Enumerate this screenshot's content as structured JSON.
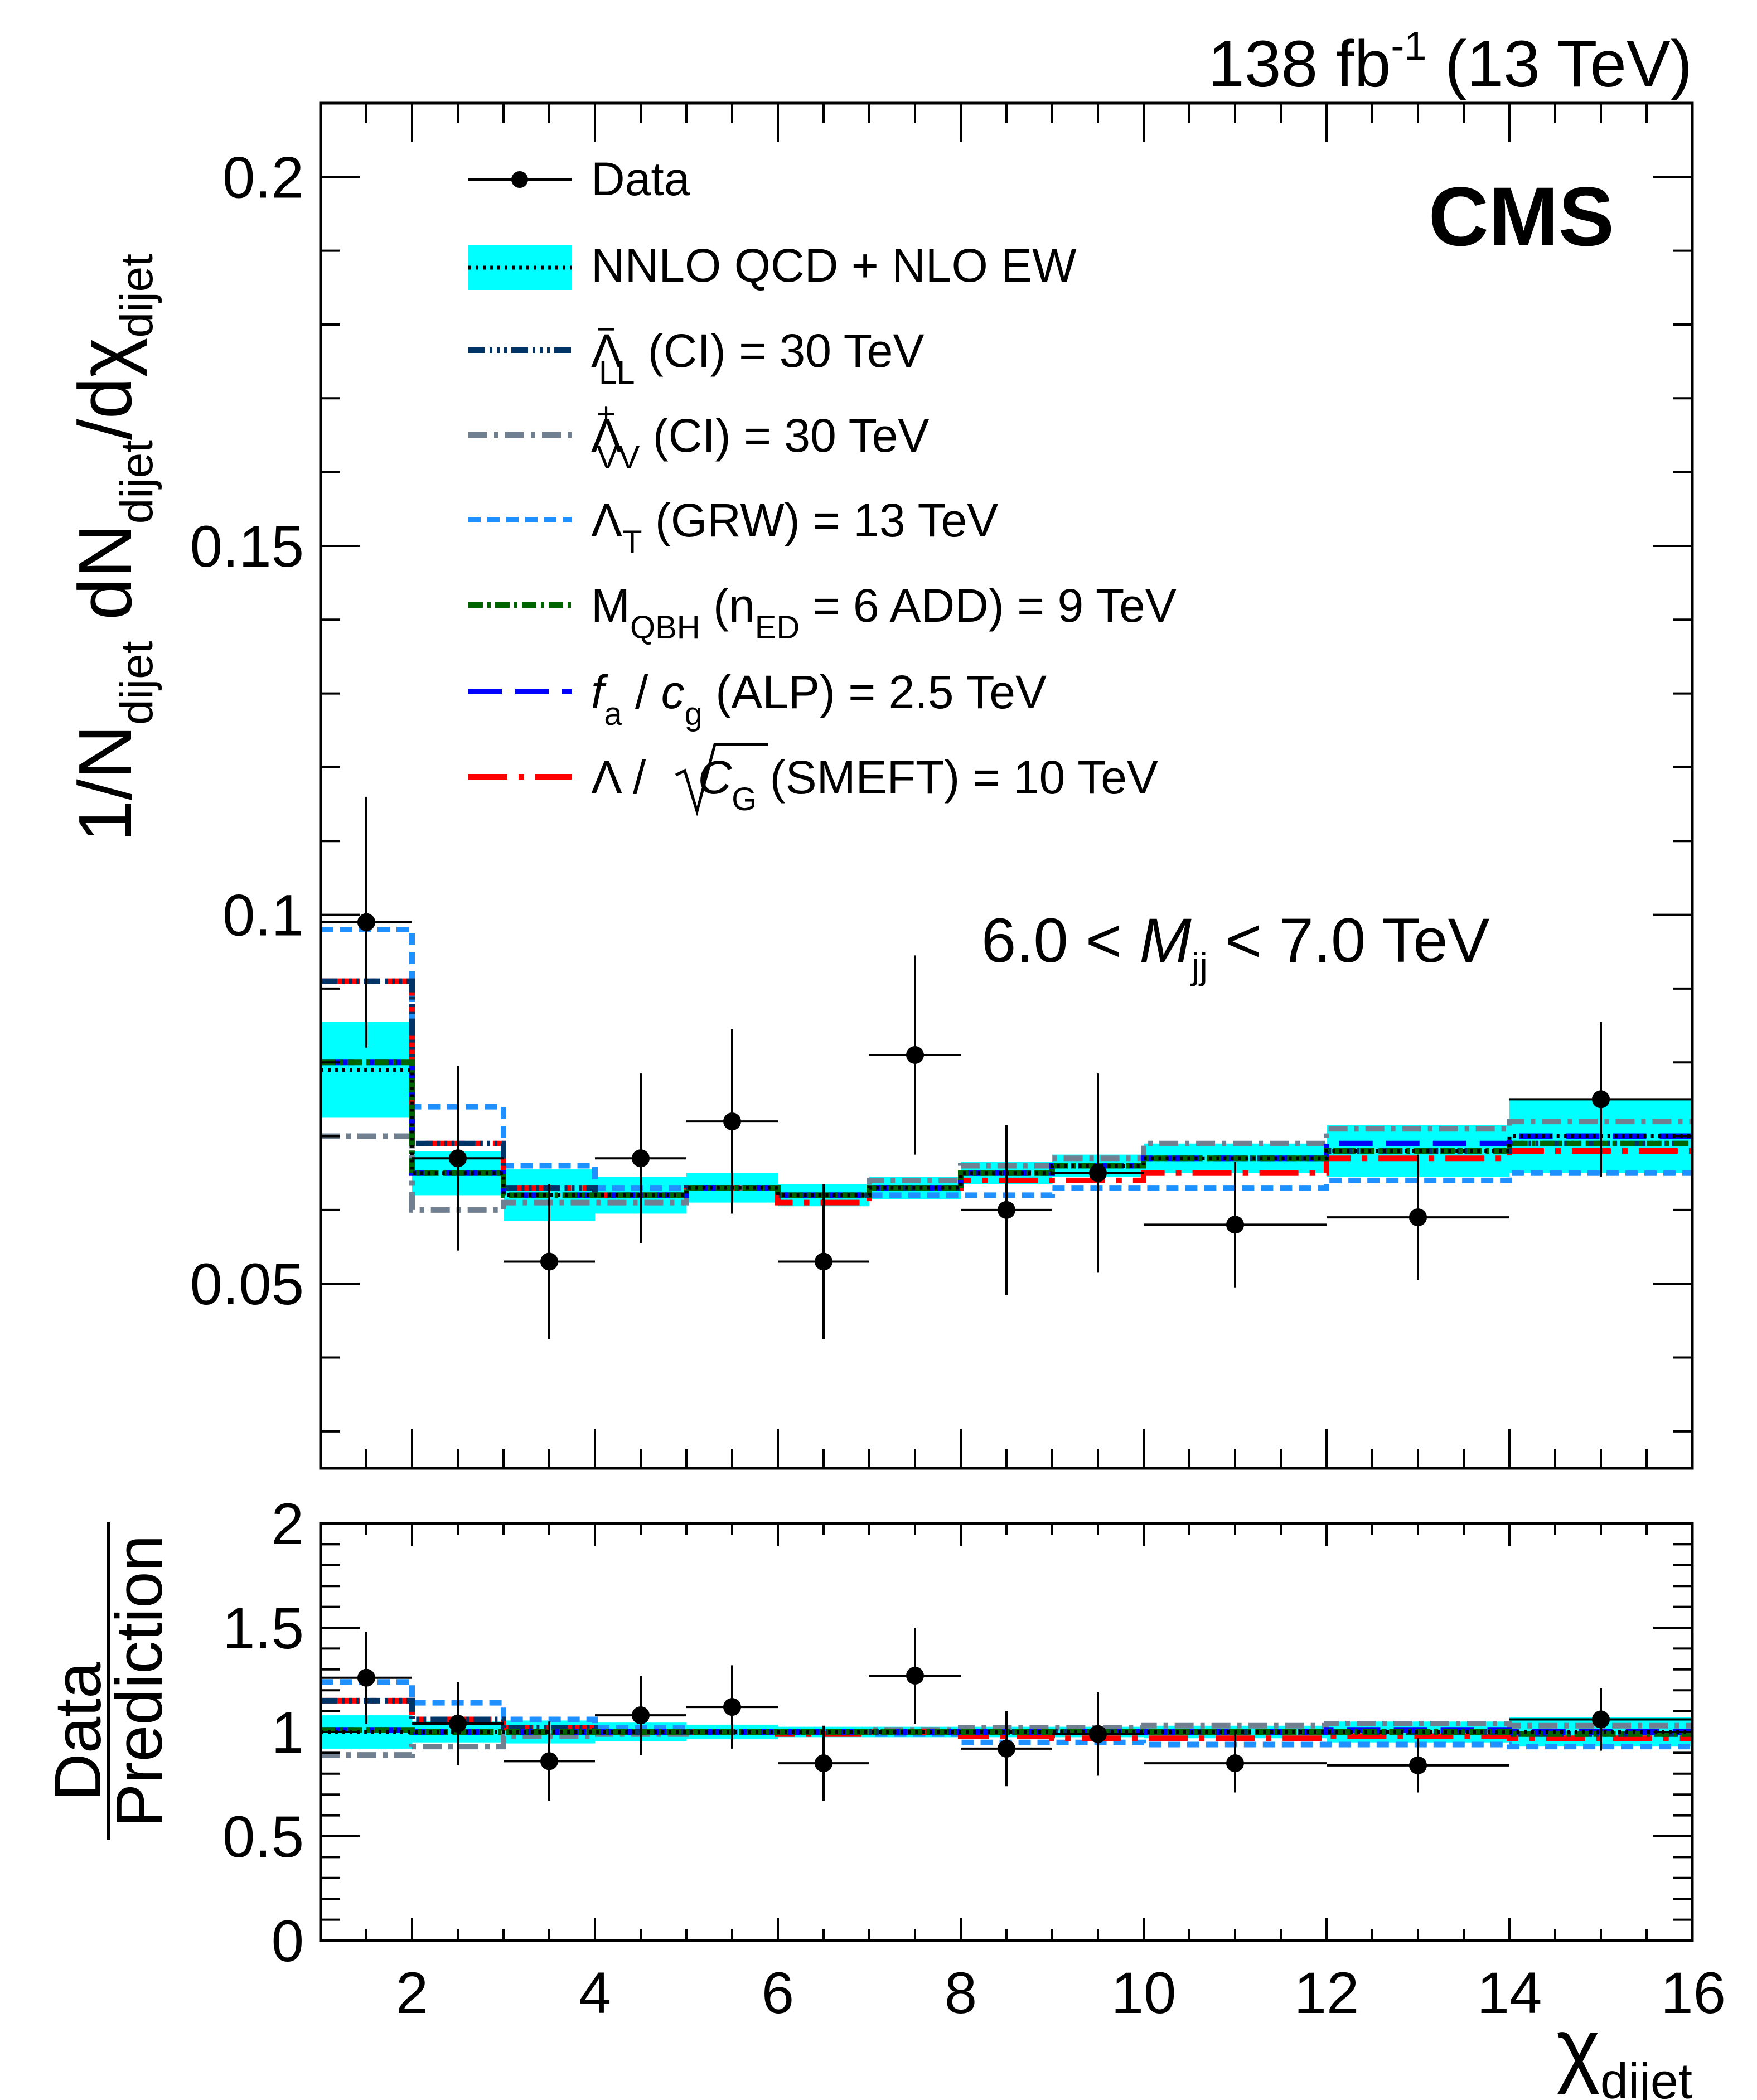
{
  "header": {
    "lumi_value": "138 fb",
    "lumi_exponent": "-1",
    "energy": " (13 TeV)",
    "experiment": "CMS"
  },
  "annotation": {
    "prefix": "6.0 < ",
    "variable": "M",
    "variable_sub": "jj",
    "suffix": " < 7.0 TeV"
  },
  "axes": {
    "x_symbol": "χ",
    "x_sub": "dijet",
    "y_prefix": "1/N",
    "y_sub1": "dijet",
    "y_mid": " dN",
    "y_sub2": "dijet",
    "y_slash": "/dχ",
    "y_sub3": "dijet",
    "ratio_top": "Data",
    "ratio_bottom": "Prediction"
  },
  "legend": [
    {
      "key": "data",
      "text": "Data"
    },
    {
      "key": "sm",
      "text": "NNLO QCD + NLO EW"
    },
    {
      "key": "ll",
      "sym": "Λ",
      "sup": "−",
      "sub": "LL",
      "text": " (CI) = 30 TeV"
    },
    {
      "key": "vv",
      "sym": "Λ",
      "sup": "+",
      "sub": "VV",
      "text": " (CI) = 30 TeV"
    },
    {
      "key": "grw",
      "sym": "Λ",
      "sub": "T",
      "text": " (GRW) = 13 TeV"
    },
    {
      "key": "qbh",
      "sym": "M",
      "sub": "QBH",
      "text": " (n",
      "sub2": "ED",
      "text2": " = 6 ADD) = 9 TeV"
    },
    {
      "key": "alp",
      "sym": "f",
      "sub": "a",
      "text": " / ",
      "sym2": "c",
      "sub2": "g",
      "text2": " (ALP) = 2.5 TeV"
    },
    {
      "key": "smeft",
      "sym": "Λ / ",
      "radicand": "C",
      "sub": "G",
      "text": " (SMEFT) = 10 TeV"
    }
  ],
  "styles": {
    "sm_band": "#00ffff",
    "ll": "#003366",
    "vv": "#708090",
    "grw": "#1e90ff",
    "qbh": "#006400",
    "alp": "#0000ff",
    "smeft": "#ff0000"
  },
  "chart_data": [
    {
      "type": "line",
      "title": "138 fb-1 (13 TeV)",
      "xlabel": "χ_dijet",
      "ylabel": "1/N_dijet dN_dijet/dχ_dijet",
      "xlim": [
        1,
        16
      ],
      "ylim": [
        0.025,
        0.21
      ],
      "yticks": [
        0.05,
        0.1,
        0.15,
        0.2
      ],
      "yticklabels": [
        "0.05",
        "0.1",
        "0.15",
        "0.2"
      ],
      "bin_edges": [
        1,
        2,
        3,
        4,
        5,
        6,
        7,
        8,
        9,
        10,
        12,
        14,
        16
      ],
      "data": {
        "x": [
          1.5,
          2.5,
          3.5,
          4.5,
          5.5,
          6.5,
          7.5,
          8.5,
          9.5,
          11,
          13,
          15
        ],
        "y": [
          0.099,
          0.067,
          0.053,
          0.067,
          0.072,
          0.053,
          0.081,
          0.06,
          0.065,
          0.058,
          0.059,
          0.075
        ],
        "yerr": [
          0.017,
          0.0125,
          0.0105,
          0.0115,
          0.0125,
          0.0105,
          0.0135,
          0.0115,
          0.0135,
          0.0085,
          0.0085,
          0.0105
        ]
      },
      "series": [
        {
          "name": "NNLO QCD + NLO EW",
          "key": "sm",
          "values": [
            0.079,
            0.065,
            0.062,
            0.062,
            0.063,
            0.062,
            0.063,
            0.065,
            0.066,
            0.067,
            0.068,
            0.07
          ],
          "band": [
            0.0065,
            0.003,
            0.0035,
            0.0025,
            0.002,
            0.0015,
            0.0015,
            0.0015,
            0.0015,
            0.002,
            0.0035,
            0.005
          ]
        },
        {
          "name": "ΛLL- (CI) = 30 TeV",
          "key": "ll",
          "values": [
            0.091,
            0.069,
            0.063,
            0.062,
            0.063,
            0.062,
            0.063,
            0.065,
            0.066,
            0.067,
            0.068,
            0.069
          ]
        },
        {
          "name": "ΛVV+ (CI) = 30 TeV",
          "key": "vv",
          "values": [
            0.07,
            0.06,
            0.061,
            0.061,
            0.063,
            0.062,
            0.064,
            0.066,
            0.067,
            0.069,
            0.071,
            0.072
          ]
        },
        {
          "name": "ΛT (GRW) = 13 TeV",
          "key": "grw",
          "values": [
            0.098,
            0.074,
            0.066,
            0.063,
            0.063,
            0.062,
            0.062,
            0.062,
            0.063,
            0.063,
            0.064,
            0.065
          ]
        },
        {
          "name": "MQBH (nED = 6 ADD) = 9 TeV",
          "key": "qbh",
          "values": [
            0.08,
            0.065,
            0.062,
            0.062,
            0.063,
            0.062,
            0.063,
            0.065,
            0.066,
            0.067,
            0.068,
            0.069
          ]
        },
        {
          "name": "fa / cg (ALP) = 2.5 TeV",
          "key": "alp",
          "values": [
            0.08,
            0.065,
            0.062,
            0.062,
            0.063,
            0.062,
            0.063,
            0.065,
            0.066,
            0.067,
            0.069,
            0.07
          ]
        },
        {
          "name": "Λ / sqrt(CG) (SMEFT) = 10 TeV",
          "key": "smeft",
          "values": [
            0.091,
            0.069,
            0.063,
            0.062,
            0.063,
            0.061,
            0.063,
            0.064,
            0.064,
            0.065,
            0.067,
            0.068
          ]
        }
      ]
    },
    {
      "type": "line",
      "xlabel": "χ_dijet",
      "ylabel": "Data / Prediction",
      "xlim": [
        1,
        16
      ],
      "ylim": [
        0,
        2
      ],
      "xticks": [
        2,
        4,
        6,
        8,
        10,
        12,
        14,
        16
      ],
      "xticklabels": [
        "2",
        "4",
        "6",
        "8",
        "10",
        "12",
        "14",
        "16"
      ],
      "yticks": [
        0,
        0.5,
        1,
        1.5,
        2
      ],
      "yticklabels": [
        "0",
        "0.5",
        "1",
        "1.5",
        "2"
      ],
      "bin_edges": [
        1,
        2,
        3,
        4,
        5,
        6,
        7,
        8,
        9,
        10,
        12,
        14,
        16
      ],
      "data": {
        "x": [
          1.5,
          2.5,
          3.5,
          4.5,
          5.5,
          6.5,
          7.5,
          8.5,
          9.5,
          11,
          13,
          15
        ],
        "y": [
          1.26,
          1.04,
          0.86,
          1.08,
          1.12,
          0.85,
          1.27,
          0.92,
          0.99,
          0.85,
          0.84,
          1.06
        ],
        "yerr": [
          0.22,
          0.2,
          0.19,
          0.19,
          0.2,
          0.18,
          0.23,
          0.18,
          0.2,
          0.14,
          0.13,
          0.15
        ]
      },
      "series": [
        {
          "name": "NNLO QCD + NLO EW",
          "key": "sm",
          "values": [
            1,
            1,
            1,
            1,
            1,
            1,
            1,
            1,
            1,
            1,
            1,
            1
          ],
          "band": [
            0.08,
            0.05,
            0.055,
            0.045,
            0.035,
            0.025,
            0.025,
            0.025,
            0.025,
            0.03,
            0.05,
            0.07
          ]
        },
        {
          "name": "ΛLL- (CI) = 30 TeV",
          "key": "ll",
          "values": [
            1.15,
            1.06,
            1.02,
            1.0,
            1.0,
            1.0,
            1.0,
            1.0,
            1.0,
            1.0,
            1.0,
            0.99
          ]
        },
        {
          "name": "ΛVV+ (CI) = 30 TeV",
          "key": "vv",
          "values": [
            0.89,
            0.93,
            0.98,
            0.99,
            1.0,
            1.0,
            1.01,
            1.02,
            1.02,
            1.03,
            1.04,
            1.03
          ]
        },
        {
          "name": "ΛT (GRW) = 13 TeV",
          "key": "grw",
          "values": [
            1.24,
            1.14,
            1.06,
            1.02,
            1.0,
            1.0,
            0.99,
            0.95,
            0.95,
            0.94,
            0.94,
            0.93
          ]
        },
        {
          "name": "MQBH (nED = 6 ADD) = 9 TeV",
          "key": "qbh",
          "values": [
            1.01,
            1.0,
            1.0,
            1.0,
            1.0,
            1.0,
            1.0,
            1.0,
            1.0,
            1.0,
            1.0,
            0.99
          ]
        },
        {
          "name": "fa / cg (ALP) = 2.5 TeV",
          "key": "alp",
          "values": [
            1.01,
            1.0,
            1.0,
            1.0,
            1.0,
            1.0,
            1.0,
            1.0,
            1.0,
            1.0,
            1.01,
            1.0
          ]
        },
        {
          "name": "Λ / sqrt(CG) (SMEFT) = 10 TeV",
          "key": "smeft",
          "values": [
            1.15,
            1.06,
            1.02,
            1.0,
            1.0,
            0.99,
            1.0,
            0.98,
            0.97,
            0.97,
            0.98,
            0.97
          ]
        }
      ]
    }
  ]
}
